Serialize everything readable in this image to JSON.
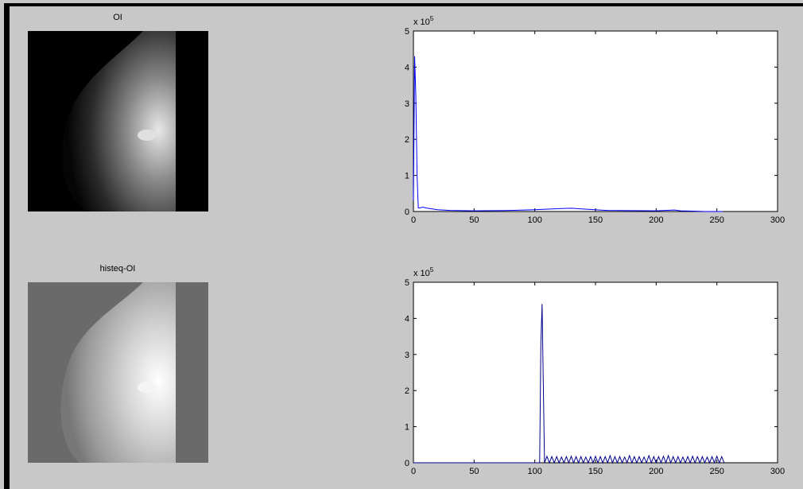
{
  "chart_data": [
    {
      "type": "image",
      "title": "OI"
    },
    {
      "type": "line",
      "y_multiplier": {
        "base": "x 10",
        "exponent": "5"
      },
      "xlim": [
        0,
        300
      ],
      "xticks": [
        0,
        50,
        100,
        150,
        200,
        250,
        300
      ],
      "ylim": [
        0,
        5
      ],
      "yticks": [
        0,
        1,
        2,
        3,
        4,
        5
      ],
      "series": [
        {
          "color": "#0000ff",
          "x": [
            0,
            1,
            2,
            3,
            4,
            5,
            8,
            10,
            20,
            30,
            50,
            80,
            100,
            120,
            130,
            140,
            160,
            200,
            215,
            220,
            230,
            240,
            255
          ],
          "values": [
            0.3,
            4.3,
            3.2,
            1.0,
            0.1,
            0.1,
            0.12,
            0.1,
            0.05,
            0.03,
            0.02,
            0.03,
            0.05,
            0.08,
            0.09,
            0.07,
            0.03,
            0.02,
            0.04,
            0.02,
            0.01,
            0.0,
            0.0
          ]
        }
      ]
    },
    {
      "type": "image",
      "title": "histeq-OI"
    },
    {
      "type": "line",
      "y_multiplier": {
        "base": "x 10",
        "exponent": "5"
      },
      "xlim": [
        0,
        300
      ],
      "xticks": [
        0,
        50,
        100,
        150,
        200,
        250,
        300
      ],
      "ylim": [
        0,
        5
      ],
      "yticks": [
        0,
        1,
        2,
        3,
        4,
        5
      ],
      "series": [
        {
          "color": "#00008b",
          "x": [
            0,
            100,
            104,
            105,
            106,
            107,
            108,
            110,
            112,
            114,
            116,
            118,
            120,
            122,
            124,
            126,
            128,
            130,
            132,
            134,
            136,
            138,
            140,
            142,
            144,
            146,
            148,
            150,
            152,
            154,
            156,
            158,
            160,
            162,
            164,
            166,
            168,
            170,
            172,
            174,
            176,
            178,
            180,
            182,
            184,
            186,
            188,
            190,
            192,
            194,
            196,
            198,
            200,
            202,
            204,
            206,
            208,
            210,
            212,
            214,
            216,
            218,
            220,
            222,
            224,
            226,
            228,
            230,
            232,
            234,
            236,
            238,
            240,
            242,
            244,
            246,
            248,
            250,
            252,
            254,
            256
          ],
          "values": [
            0,
            0,
            0,
            3.3,
            4.4,
            2.2,
            0,
            0.18,
            0,
            0.17,
            0,
            0.17,
            0,
            0.16,
            0,
            0.17,
            0,
            0.18,
            0,
            0.17,
            0,
            0.17,
            0,
            0.16,
            0,
            0.17,
            0,
            0.18,
            0,
            0.17,
            0,
            0.17,
            0,
            0.2,
            0,
            0.17,
            0,
            0.17,
            0,
            0.16,
            0,
            0.2,
            0,
            0.17,
            0,
            0.17,
            0,
            0.16,
            0,
            0.2,
            0,
            0.17,
            0,
            0.17,
            0,
            0.18,
            0,
            0.2,
            0,
            0.17,
            0,
            0.17,
            0,
            0.16,
            0,
            0.17,
            0,
            0.18,
            0,
            0.17,
            0,
            0.17,
            0,
            0.16,
            0,
            0.17,
            0,
            0.18,
            0,
            0.17,
            0
          ]
        }
      ]
    }
  ]
}
